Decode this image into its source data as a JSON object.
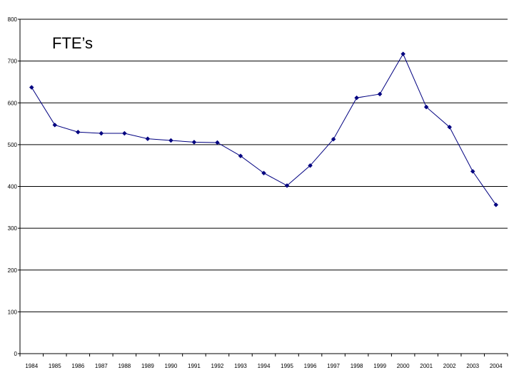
{
  "chart_data": {
    "type": "line",
    "title": "FTE’s",
    "xlabel": "",
    "ylabel": "",
    "ylim": [
      0,
      800
    ],
    "yticks": [
      0,
      100,
      200,
      300,
      400,
      500,
      600,
      700,
      800
    ],
    "grid": true,
    "categories": [
      "1984",
      "1985",
      "1986",
      "1987",
      "1988",
      "1989",
      "1990",
      "1991",
      "1992",
      "1993",
      "1994",
      "1995",
      "1996",
      "1997",
      "1998",
      "1999",
      "2000",
      "2001",
      "2002",
      "2003",
      "2004"
    ],
    "series": [
      {
        "values": [
          637,
          547,
          530,
          527,
          527,
          514,
          510,
          506,
          505,
          473,
          432,
          402,
          450,
          513,
          612,
          621,
          717,
          590,
          542,
          436,
          356
        ],
        "color": "#000080"
      }
    ]
  }
}
